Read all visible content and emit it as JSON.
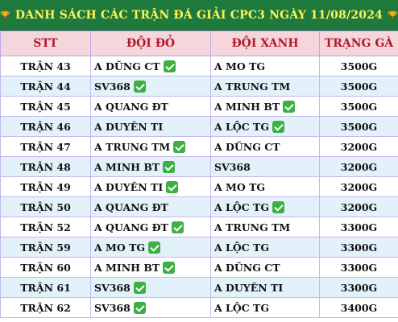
{
  "header": {
    "title": "DANH SÁCH CÁC TRẬN ĐÁ GIẢI CPC3 NGÀY 11/08/2024",
    "columns": [
      "STT",
      "ĐỘI ĐỎ",
      "ĐỘI XANH",
      "TRẠNG GÀ"
    ]
  },
  "colors": {
    "title_bg": "#1e7a3c",
    "title_text": "#fff35a",
    "header_bg": "#f4d6dc",
    "header_text": "#b3192b",
    "row_alt_bg": "#e3f1fb",
    "check_green": "#3cb043"
  },
  "rows": [
    {
      "stt": "TRẬN 43",
      "red": "A DŨNG CT",
      "red_check": true,
      "blue": "A MO TG",
      "blue_check": false,
      "weight": "3500G"
    },
    {
      "stt": "TRẬN 44",
      "red": "SV368",
      "red_check": true,
      "blue": "A TRUNG TM",
      "blue_check": false,
      "weight": "3500G"
    },
    {
      "stt": "TRẬN 45",
      "red": "A QUANG ĐT",
      "red_check": false,
      "blue": "A MINH BT",
      "blue_check": true,
      "weight": "3500G"
    },
    {
      "stt": "TRẬN 46",
      "red": "A DUYÊN TI",
      "red_check": false,
      "blue": "A LỘC TG",
      "blue_check": true,
      "weight": "3500G"
    },
    {
      "stt": "TRẬN 47",
      "red": "A TRUNG TM",
      "red_check": true,
      "blue": "A DŨNG CT",
      "blue_check": false,
      "weight": "3200G"
    },
    {
      "stt": "TRẬN 48",
      "red": "A MINH BT",
      "red_check": true,
      "blue": "SV368",
      "blue_check": false,
      "weight": "3200G"
    },
    {
      "stt": "TRẬN 49",
      "red": "A DUYÊN TI",
      "red_check": true,
      "blue": "A MO TG",
      "blue_check": false,
      "weight": "3200G"
    },
    {
      "stt": "TRẬN 50",
      "red": "A QUANG ĐT",
      "red_check": false,
      "blue": "A LỘC TG",
      "blue_check": true,
      "weight": "3200G"
    },
    {
      "stt": "TRẬN 52",
      "red": "A QUANG ĐT",
      "red_check": true,
      "blue": "A TRUNG TM",
      "blue_check": false,
      "weight": "3300G"
    },
    {
      "stt": "TRẬN 59",
      "red": "A MO TG",
      "red_check": true,
      "blue": "A LỘC TG",
      "blue_check": false,
      "weight": "3300G"
    },
    {
      "stt": "TRẬN 60",
      "red": "A MINH BT",
      "red_check": true,
      "blue": "A DŨNG CT",
      "blue_check": false,
      "weight": "3300G"
    },
    {
      "stt": "TRẬN 61",
      "red": "SV368",
      "red_check": true,
      "blue": "A DUYÊN TI",
      "blue_check": false,
      "weight": "3300G"
    },
    {
      "stt": "TRẬN 62",
      "red": "SV368",
      "red_check": true,
      "blue": "A LỘC TG",
      "blue_check": false,
      "weight": "3400G"
    }
  ]
}
